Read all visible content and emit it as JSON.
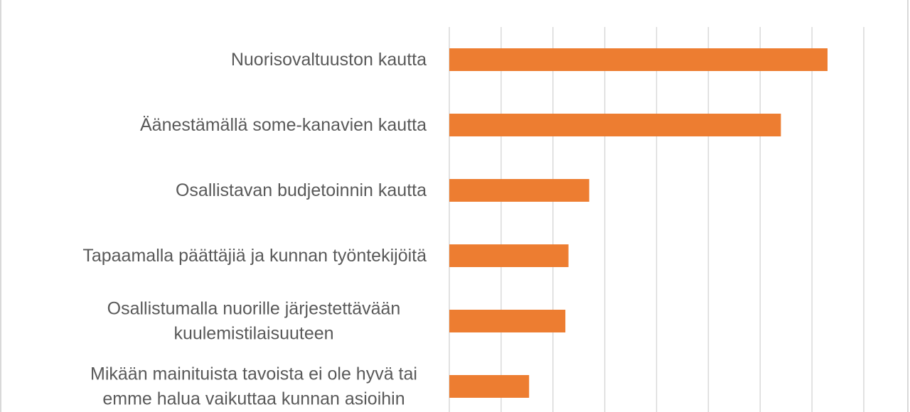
{
  "chart_data": {
    "type": "bar",
    "orientation": "horizontal",
    "categories": [
      [
        "Nuorisovaltuuston kautta"
      ],
      [
        "Äänestämällä some-kanavien kautta"
      ],
      [
        "Osallistavan budjetoinnin kautta"
      ],
      [
        "Tapaamalla päättäjiä ja kunnan työntekijöitä"
      ],
      [
        "Osallistumalla nuorille järjestettävään",
        "kuulemistilaisuuteen"
      ],
      [
        "Mikään mainituista tavoista ei ole hyvä tai",
        "emme halua vaikuttaa kunnan asioihin"
      ]
    ],
    "values": [
      36.5,
      32,
      13.5,
      11.5,
      11.2,
      7.7
    ],
    "xlim": [
      0,
      40
    ],
    "x_tick_step": 5,
    "grid": true,
    "bar_color": "#ed7d31",
    "grid_color": "#d9d9d9",
    "label_color": "#595959"
  }
}
